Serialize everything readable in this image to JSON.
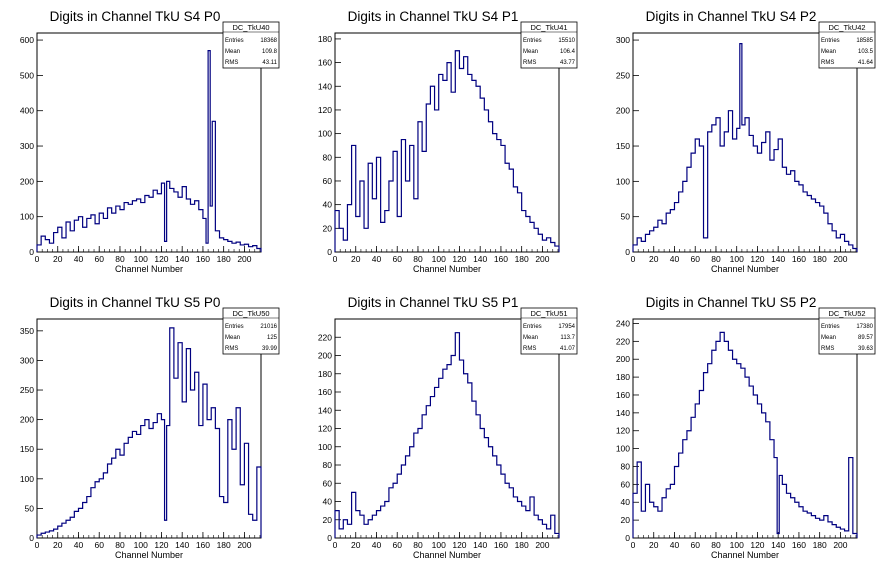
{
  "chart_data": [
    {
      "type": "histogram",
      "title": "Digits in Channel TkU S4 P0",
      "xlabel": "Channel Number",
      "ylabel": "",
      "xlim": [
        0,
        216
      ],
      "ylim": [
        0,
        620
      ],
      "xticks": [
        0,
        20,
        40,
        60,
        80,
        100,
        120,
        140,
        160,
        180,
        200
      ],
      "yticks": [
        0,
        100,
        200,
        300,
        400,
        500,
        600
      ],
      "stats": {
        "name": "DC_TkU40",
        "entries_label": "Entries",
        "entries": "18368",
        "mean_label": "Mean",
        "mean": "109.8",
        "rms_label": "RMS",
        "rms": "43.11"
      },
      "x": [
        2,
        6,
        10,
        14,
        18,
        22,
        26,
        30,
        34,
        38,
        42,
        46,
        50,
        54,
        58,
        62,
        66,
        70,
        74,
        78,
        82,
        86,
        90,
        94,
        98,
        102,
        106,
        110,
        114,
        118,
        122,
        124,
        126,
        130,
        134,
        138,
        142,
        146,
        150,
        154,
        158,
        162,
        164,
        166,
        168,
        170,
        174,
        178,
        182,
        186,
        190,
        194,
        198,
        202,
        206,
        210,
        214
      ],
      "values": [
        20,
        45,
        35,
        25,
        55,
        70,
        40,
        85,
        60,
        90,
        100,
        70,
        95,
        105,
        80,
        110,
        95,
        125,
        110,
        130,
        120,
        140,
        135,
        145,
        150,
        140,
        160,
        155,
        175,
        165,
        195,
        30,
        200,
        180,
        170,
        155,
        185,
        150,
        135,
        145,
        120,
        95,
        25,
        570,
        130,
        370,
        60,
        40,
        35,
        30,
        25,
        28,
        20,
        22,
        15,
        18,
        10
      ]
    },
    {
      "type": "histogram",
      "title": "Digits in Channel TkU S4 P1",
      "xlabel": "Channel Number",
      "ylabel": "",
      "xlim": [
        0,
        216
      ],
      "ylim": [
        0,
        185
      ],
      "xticks": [
        0,
        20,
        40,
        60,
        80,
        100,
        120,
        140,
        160,
        180,
        200
      ],
      "yticks": [
        0,
        20,
        40,
        60,
        80,
        100,
        120,
        140,
        160,
        180
      ],
      "stats": {
        "name": "DC_TkU41",
        "entries_label": "Entries",
        "entries": "15510",
        "mean_label": "Mean",
        "mean": "106.4",
        "rms_label": "RMS",
        "rms": "43.77"
      },
      "x": [
        2,
        6,
        10,
        14,
        18,
        22,
        26,
        30,
        34,
        38,
        42,
        46,
        50,
        54,
        58,
        62,
        66,
        70,
        74,
        78,
        82,
        86,
        90,
        94,
        98,
        102,
        106,
        110,
        114,
        118,
        122,
        126,
        130,
        134,
        138,
        142,
        146,
        150,
        154,
        158,
        162,
        166,
        170,
        174,
        178,
        182,
        186,
        190,
        194,
        198,
        202,
        206,
        210,
        214
      ],
      "values": [
        35,
        20,
        10,
        40,
        90,
        30,
        60,
        20,
        75,
        45,
        80,
        25,
        35,
        60,
        85,
        30,
        95,
        60,
        90,
        45,
        110,
        85,
        125,
        140,
        120,
        150,
        145,
        160,
        135,
        170,
        155,
        165,
        150,
        145,
        140,
        130,
        120,
        110,
        100,
        95,
        90,
        75,
        70,
        55,
        50,
        35,
        30,
        25,
        20,
        15,
        10,
        12,
        8,
        5
      ]
    },
    {
      "type": "histogram",
      "title": "Digits in Channel TkU S4 P2",
      "xlabel": "Channel Number",
      "ylabel": "",
      "xlim": [
        0,
        216
      ],
      "ylim": [
        0,
        310
      ],
      "xticks": [
        0,
        20,
        40,
        60,
        80,
        100,
        120,
        140,
        160,
        180,
        200
      ],
      "yticks": [
        0,
        50,
        100,
        150,
        200,
        250,
        300
      ],
      "stats": {
        "name": "DC_TkU42",
        "entries_label": "Entries",
        "entries": "18585",
        "mean_label": "Mean",
        "mean": "103.5",
        "rms_label": "RMS",
        "rms": "41.64"
      },
      "x": [
        2,
        6,
        10,
        14,
        18,
        22,
        26,
        30,
        34,
        38,
        42,
        46,
        50,
        54,
        58,
        62,
        66,
        70,
        74,
        78,
        82,
        86,
        90,
        94,
        98,
        102,
        104,
        106,
        110,
        114,
        118,
        122,
        126,
        130,
        134,
        138,
        142,
        146,
        150,
        154,
        158,
        162,
        166,
        170,
        174,
        178,
        182,
        186,
        190,
        194,
        198,
        202,
        206,
        210,
        214
      ],
      "values": [
        10,
        20,
        15,
        25,
        30,
        35,
        45,
        40,
        55,
        60,
        70,
        85,
        100,
        120,
        140,
        160,
        150,
        20,
        170,
        180,
        190,
        150,
        170,
        200,
        160,
        175,
        295,
        180,
        190,
        165,
        150,
        140,
        155,
        170,
        130,
        145,
        160,
        120,
        110,
        115,
        100,
        95,
        85,
        80,
        75,
        70,
        65,
        55,
        40,
        30,
        20,
        25,
        15,
        10,
        5
      ]
    },
    {
      "type": "histogram",
      "title": "Digits in Channel TkU S5 P0",
      "xlabel": "Channel Number",
      "ylabel": "",
      "xlim": [
        0,
        216
      ],
      "ylim": [
        0,
        370
      ],
      "xticks": [
        0,
        20,
        40,
        60,
        80,
        100,
        120,
        140,
        160,
        180,
        200
      ],
      "yticks": [
        0,
        50,
        100,
        150,
        200,
        250,
        300,
        350
      ],
      "stats": {
        "name": "DC_TkU50",
        "entries_label": "Entries",
        "entries": "21016",
        "mean_label": "Mean",
        "mean": "125",
        "rms_label": "RMS",
        "rms": "39.99"
      },
      "x": [
        2,
        6,
        10,
        14,
        18,
        22,
        26,
        30,
        34,
        38,
        42,
        46,
        50,
        54,
        58,
        62,
        66,
        70,
        74,
        78,
        82,
        86,
        90,
        94,
        98,
        102,
        106,
        110,
        114,
        118,
        122,
        124,
        126,
        130,
        134,
        138,
        142,
        146,
        150,
        154,
        158,
        162,
        166,
        170,
        174,
        178,
        182,
        186,
        190,
        194,
        198,
        202,
        206,
        210,
        214
      ],
      "values": [
        5,
        8,
        10,
        12,
        15,
        20,
        25,
        30,
        35,
        45,
        50,
        60,
        70,
        85,
        95,
        100,
        110,
        125,
        135,
        150,
        140,
        160,
        170,
        180,
        175,
        190,
        200,
        185,
        195,
        210,
        200,
        30,
        190,
        355,
        270,
        330,
        230,
        320,
        250,
        280,
        190,
        260,
        200,
        220,
        185,
        70,
        60,
        200,
        150,
        220,
        90,
        160,
        40,
        30,
        120
      ]
    },
    {
      "type": "histogram",
      "title": "Digits in Channel TkU S5 P1",
      "xlabel": "Channel Number",
      "ylabel": "",
      "xlim": [
        0,
        216
      ],
      "ylim": [
        0,
        240
      ],
      "xticks": [
        0,
        20,
        40,
        60,
        80,
        100,
        120,
        140,
        160,
        180,
        200
      ],
      "yticks": [
        0,
        20,
        40,
        60,
        80,
        100,
        120,
        140,
        160,
        180,
        200,
        220
      ],
      "stats": {
        "name": "DC_TkU51",
        "entries_label": "Entries",
        "entries": "17954",
        "mean_label": "Mean",
        "mean": "113.7",
        "rms_label": "RMS",
        "rms": "41.07"
      },
      "x": [
        2,
        6,
        10,
        14,
        18,
        22,
        26,
        30,
        34,
        38,
        42,
        46,
        50,
        54,
        58,
        62,
        66,
        70,
        74,
        78,
        82,
        86,
        90,
        94,
        98,
        102,
        106,
        110,
        114,
        118,
        122,
        126,
        130,
        134,
        138,
        142,
        146,
        150,
        154,
        158,
        162,
        166,
        170,
        174,
        178,
        182,
        186,
        190,
        194,
        198,
        202,
        206,
        210,
        214
      ],
      "values": [
        30,
        10,
        20,
        15,
        50,
        30,
        25,
        15,
        20,
        25,
        30,
        35,
        40,
        55,
        60,
        70,
        80,
        90,
        100,
        115,
        120,
        135,
        145,
        155,
        165,
        175,
        185,
        190,
        200,
        225,
        195,
        180,
        170,
        150,
        135,
        120,
        110,
        100,
        90,
        80,
        70,
        60,
        55,
        45,
        40,
        35,
        30,
        45,
        25,
        20,
        15,
        10,
        25,
        5
      ]
    },
    {
      "type": "histogram",
      "title": "Digits in Channel TkU S5 P2",
      "xlabel": "Channel Number",
      "ylabel": "",
      "xlim": [
        0,
        216
      ],
      "ylim": [
        0,
        245
      ],
      "xticks": [
        0,
        20,
        40,
        60,
        80,
        100,
        120,
        140,
        160,
        180,
        200
      ],
      "yticks": [
        0,
        20,
        40,
        60,
        80,
        100,
        120,
        140,
        160,
        180,
        200,
        220,
        240
      ],
      "stats": {
        "name": "DC_TkU52",
        "entries_label": "Entries",
        "entries": "17380",
        "mean_label": "Mean",
        "mean": "89.57",
        "rms_label": "RMS",
        "rms": "39.63"
      },
      "x": [
        2,
        6,
        10,
        14,
        18,
        22,
        26,
        30,
        34,
        38,
        42,
        46,
        50,
        54,
        58,
        62,
        66,
        70,
        74,
        78,
        82,
        86,
        90,
        94,
        98,
        102,
        106,
        110,
        114,
        118,
        122,
        126,
        130,
        134,
        138,
        140,
        142,
        146,
        150,
        154,
        158,
        162,
        166,
        170,
        174,
        178,
        182,
        186,
        190,
        194,
        198,
        202,
        206,
        210,
        214
      ],
      "values": [
        50,
        85,
        30,
        60,
        40,
        35,
        30,
        45,
        55,
        60,
        80,
        95,
        110,
        120,
        135,
        150,
        165,
        185,
        195,
        210,
        220,
        230,
        220,
        210,
        200,
        195,
        190,
        180,
        170,
        160,
        150,
        140,
        130,
        110,
        90,
        5,
        70,
        60,
        50,
        45,
        40,
        35,
        30,
        28,
        25,
        22,
        20,
        25,
        18,
        15,
        12,
        10,
        8,
        90,
        5
      ]
    }
  ]
}
